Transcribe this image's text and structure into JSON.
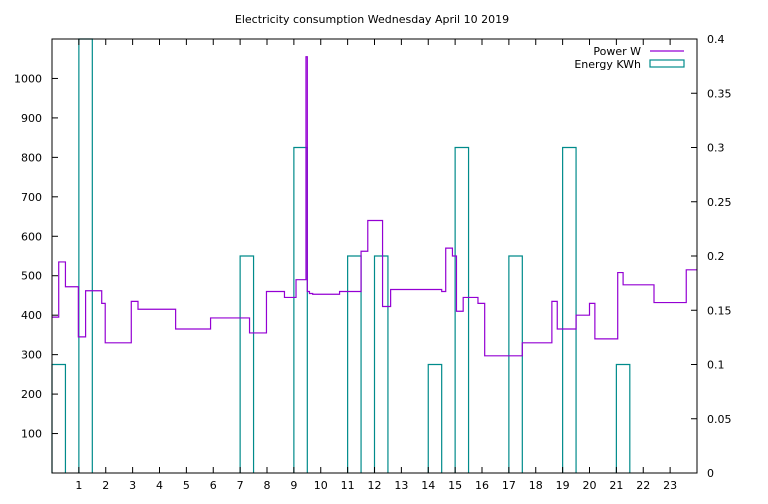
{
  "chart_data": {
    "type": "line",
    "title": "Electricity consumption Wednesday April 10 2019",
    "xlabel": "",
    "ylabel": "",
    "y2label": "",
    "xlim": [
      0,
      24
    ],
    "x_ticks": [
      "1",
      "2",
      "3",
      "4",
      "5",
      "6",
      "7",
      "8",
      "9",
      "10",
      "11",
      "12",
      "13",
      "14",
      "15",
      "16",
      "17",
      "18",
      "19",
      "20",
      "21",
      "22",
      "23"
    ],
    "ylim": [
      0,
      1100
    ],
    "y_ticks": [
      "100",
      "200",
      "300",
      "400",
      "500",
      "600",
      "700",
      "800",
      "900",
      "1000"
    ],
    "y2lim": [
      0,
      0.4
    ],
    "y2_ticks": [
      "0",
      "0.05",
      "0.1",
      "0.15",
      "0.2",
      "0.25",
      "0.3",
      "0.35",
      "0.4"
    ],
    "grid": false,
    "legend_position": "top-right",
    "series": [
      {
        "name": "Power W",
        "axis": "left",
        "style": "step",
        "color": "#9400d3",
        "x": [
          0.0,
          0.25,
          0.5,
          0.98,
          1.25,
          1.85,
          1.98,
          2.95,
          3.2,
          4.6,
          5.9,
          7.35,
          7.98,
          8.65,
          9.08,
          9.45,
          9.5,
          9.58,
          9.7,
          10.7,
          11.5,
          11.75,
          12.3,
          12.6,
          14.5,
          14.65,
          14.9,
          15.05,
          15.3,
          15.85,
          16.1,
          17.5,
          18.6,
          18.8,
          19.5,
          20.0,
          20.2,
          21.05,
          21.25,
          22.4,
          23.6,
          24.0
        ],
        "y": [
          395,
          535,
          472,
          345,
          462,
          430,
          330,
          435,
          415,
          365,
          393,
          355,
          460,
          445,
          490,
          1055,
          460,
          455,
          453,
          460,
          562,
          640,
          422,
          465,
          460,
          570,
          550,
          410,
          445,
          430,
          297,
          330,
          435,
          365,
          400,
          430,
          340,
          508,
          477,
          432,
          515,
          515
        ]
      },
      {
        "name": "Energy KWh",
        "axis": "right",
        "style": "boxes",
        "color": "#008b8b",
        "x": [
          0.0,
          1.0,
          7.0,
          9.0,
          11.0,
          12.0,
          14.0,
          15.0,
          17.0,
          19.0,
          21.0
        ],
        "width": 0.5,
        "values": [
          0.1,
          0.4,
          0.2,
          0.3,
          0.2,
          0.2,
          0.1,
          0.3,
          0.2,
          0.3,
          0.1
        ]
      }
    ]
  },
  "colors": {
    "power": "#9400d3",
    "energy": "#008b8b"
  }
}
